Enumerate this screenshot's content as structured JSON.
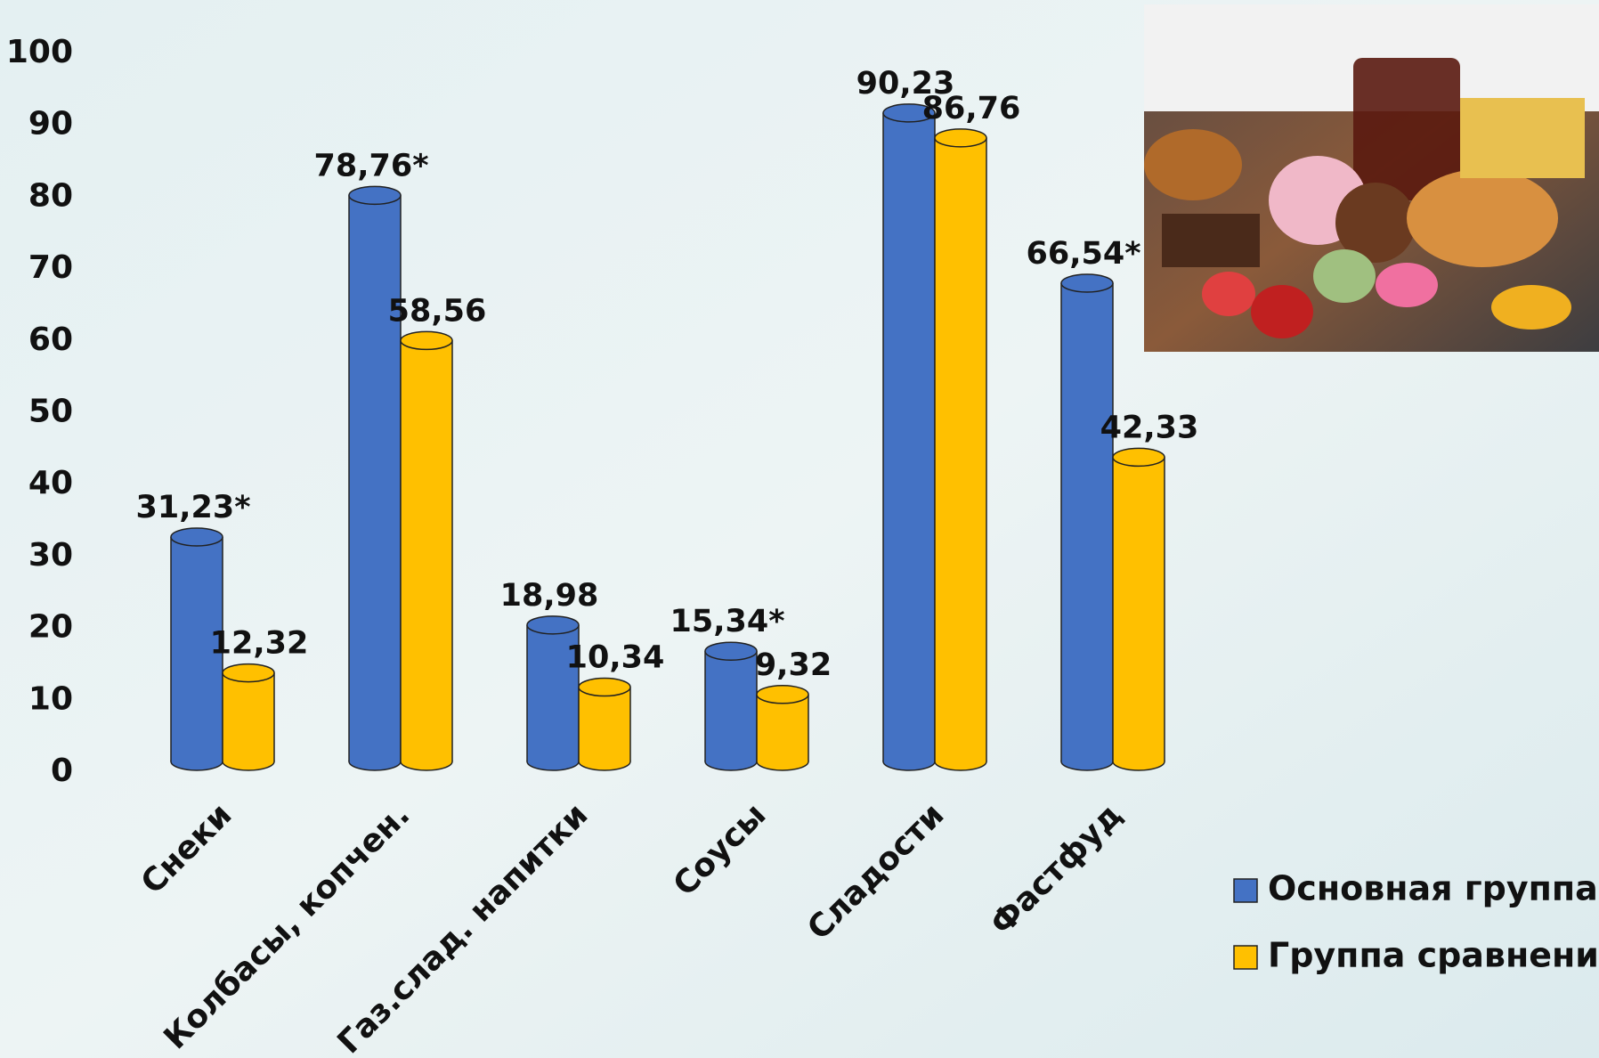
{
  "chart_data": {
    "type": "bar",
    "categories": [
      "Снеки",
      "Колбасы, копчен.",
      "Газ.слад. напитки",
      "Соусы",
      "Сладости",
      "Фастфуд"
    ],
    "series": [
      {
        "name": "Основная группа",
        "color": "#4472c4",
        "values": [
          31.23,
          78.76,
          18.98,
          15.34,
          90.23,
          66.54
        ],
        "value_labels": [
          "31,23*",
          "78,76*",
          "18,98",
          "15,34*",
          "90,23",
          "66,54*"
        ]
      },
      {
        "name": "Группа сравнения",
        "color": "#ffc000",
        "values": [
          12.32,
          58.56,
          10.34,
          9.32,
          86.76,
          42.33
        ],
        "value_labels": [
          "12,32",
          "58,56",
          "10,34",
          "9,32",
          "86,76",
          "42,33"
        ]
      }
    ],
    "ylim": [
      0,
      100
    ],
    "yticks": [
      0,
      10,
      20,
      30,
      40,
      50,
      60,
      70,
      80,
      90,
      100
    ]
  }
}
